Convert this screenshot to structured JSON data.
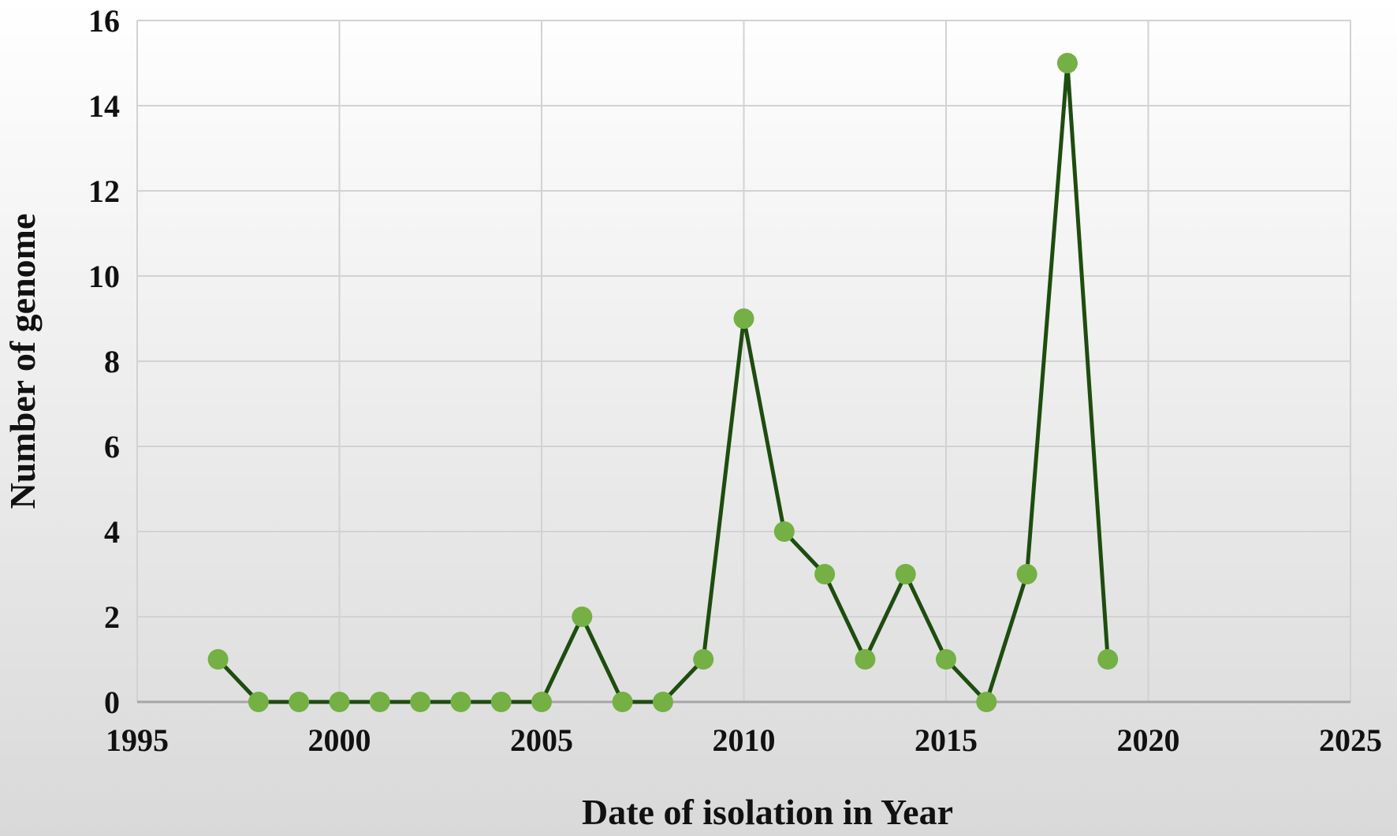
{
  "chart_data": {
    "type": "scatter",
    "title": "",
    "xlabel": "Date of isolation in Year",
    "ylabel": "Number of genome",
    "xlim": [
      1995,
      2025
    ],
    "ylim": [
      0,
      16
    ],
    "xticks": [
      1995,
      2000,
      2005,
      2010,
      2015,
      2020,
      2025
    ],
    "yticks": [
      0,
      2,
      4,
      6,
      8,
      10,
      12,
      14,
      16
    ],
    "x_tick_labels": [
      "1995",
      "2000",
      "2005",
      "2010",
      "2015",
      "2020",
      "2025"
    ],
    "y_tick_labels": [
      "0",
      "2",
      "4",
      "6",
      "8",
      "10",
      "12",
      "14",
      "16"
    ],
    "grid": true,
    "legend": "none",
    "series": [
      {
        "style": "lines-and-markers",
        "x": [
          1997,
          1998,
          1999,
          2000,
          2001,
          2002,
          2003,
          2004,
          2005,
          2006,
          2007,
          2008,
          2009,
          2010,
          2011,
          2012,
          2013,
          2014,
          2015,
          2016,
          2017,
          2018,
          2019
        ],
        "y": [
          1,
          0,
          0,
          0,
          0,
          0,
          0,
          0,
          0,
          2,
          0,
          0,
          1,
          9,
          4,
          3,
          1,
          3,
          1,
          0,
          3,
          15,
          1
        ]
      }
    ],
    "colors": {
      "line": "#1e4d0f",
      "marker": "#74b044",
      "grid": "#d2d2d2",
      "axis": "#a6a6a6",
      "background_top": "#ffffff",
      "background_bottom": "#d9d9d9"
    }
  }
}
